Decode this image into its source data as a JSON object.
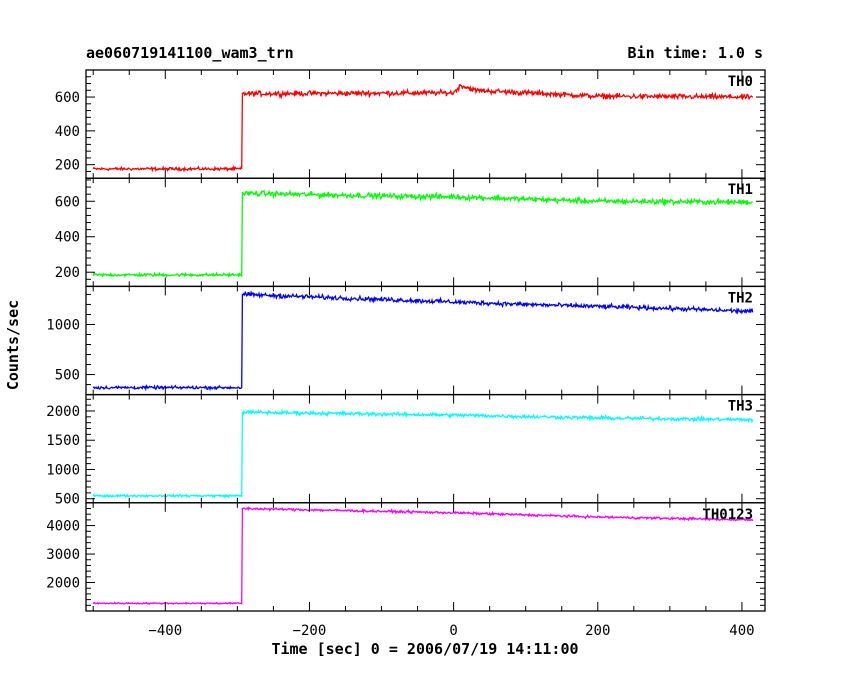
{
  "chart_data": {
    "type": "line",
    "title": "ae060719141100_wam3_trn",
    "subtitle": "Bin time: 1.0 s",
    "xlabel": "Time [sec] 0 = 2006/07/19 14:11:00",
    "ylabel": "Counts/sec",
    "xlim": [
      -510,
      432
    ],
    "x_ticks": [
      -400,
      -200,
      0,
      200,
      400
    ],
    "x_tick_labels": [
      "−400",
      "−200",
      "0",
      "200",
      "400"
    ],
    "grid": false,
    "series": [
      {
        "name": "TH0",
        "color": "#ff0000",
        "ylim": [
          120,
          760
        ],
        "y_ticks": [
          200,
          400,
          600
        ],
        "y_tick_labels": [
          "200",
          "400",
          "600"
        ],
        "x_start": -500,
        "x_end": 415,
        "step_x": -293,
        "pre_level": 175,
        "pre_noise": 13,
        "post_points": [
          [
            -293,
            620
          ],
          [
            0,
            625
          ],
          [
            10,
            670
          ],
          [
            30,
            640
          ],
          [
            100,
            625
          ],
          [
            200,
            605
          ],
          [
            415,
            600
          ]
        ],
        "post_noise": 22
      },
      {
        "name": "TH1",
        "color": "#00ff00",
        "ylim": [
          120,
          730
        ],
        "y_ticks": [
          200,
          400,
          600
        ],
        "y_tick_labels": [
          "200",
          "400",
          "600"
        ],
        "x_start": -500,
        "x_end": 415,
        "step_x": -293,
        "pre_level": 185,
        "pre_noise": 13,
        "post_points": [
          [
            -293,
            645
          ],
          [
            -100,
            630
          ],
          [
            0,
            625
          ],
          [
            200,
            600
          ],
          [
            415,
            595
          ]
        ],
        "post_noise": 22
      },
      {
        "name": "TH2",
        "color": "#0000ff",
        "ylim": [
          300,
          1380
        ],
        "y_ticks": [
          500,
          1000
        ],
        "y_tick_labels": [
          "500",
          "1000"
        ],
        "x_start": -500,
        "x_end": 415,
        "step_x": -293,
        "pre_level": 370,
        "pre_noise": 22,
        "post_points": [
          [
            -293,
            1300
          ],
          [
            -100,
            1250
          ],
          [
            100,
            1200
          ],
          [
            300,
            1160
          ],
          [
            415,
            1130
          ]
        ],
        "post_noise": 32
      },
      {
        "name": "TH3",
        "color": "#00ffff",
        "ylim": [
          430,
          2280
        ],
        "y_ticks": [
          500,
          1000,
          1500,
          2000
        ],
        "y_tick_labels": [
          "500",
          "1000",
          "1500",
          "2000"
        ],
        "x_start": -500,
        "x_end": 415,
        "step_x": -293,
        "pre_level": 550,
        "pre_noise": 28,
        "post_points": [
          [
            -293,
            1980
          ],
          [
            0,
            1930
          ],
          [
            200,
            1880
          ],
          [
            415,
            1850
          ]
        ],
        "post_noise": 45
      },
      {
        "name": "TH0123",
        "color": "#ff00ff",
        "ylim": [
          1000,
          4800
        ],
        "y_ticks": [
          2000,
          3000,
          4000
        ],
        "y_tick_labels": [
          "2000",
          "3000",
          "4000"
        ],
        "x_start": -500,
        "x_end": 415,
        "step_x": -293,
        "pre_level": 1270,
        "pre_noise": 35,
        "post_points": [
          [
            -293,
            4600
          ],
          [
            0,
            4450
          ],
          [
            200,
            4300
          ],
          [
            415,
            4200
          ]
        ],
        "post_noise": 60
      }
    ]
  }
}
